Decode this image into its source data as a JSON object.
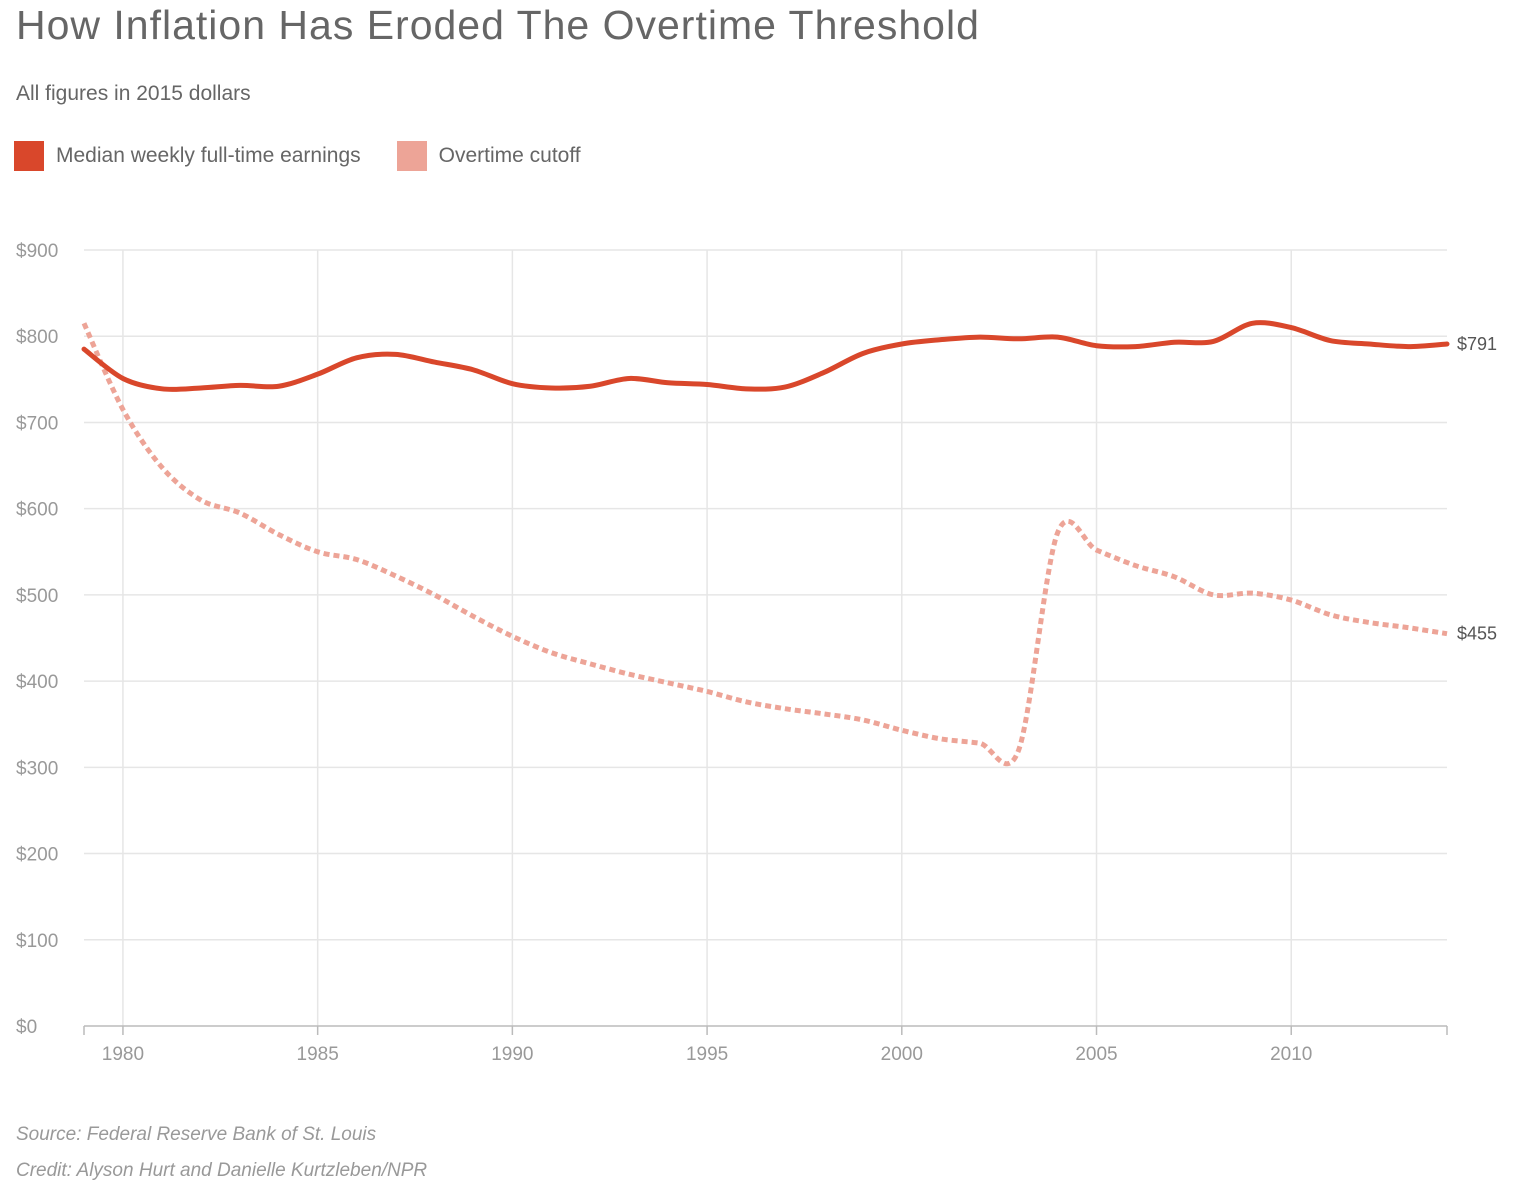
{
  "chart_data": {
    "type": "line",
    "title": "How Inflation Has Eroded The Overtime Threshold",
    "subtitle": "All figures in 2015 dollars",
    "xlim": [
      1979,
      2014
    ],
    "ylim": [
      0,
      900
    ],
    "x_ticks": [
      1980,
      1985,
      1990,
      1995,
      2000,
      2005,
      2010
    ],
    "x_tick_labels": [
      "1980",
      "1985",
      "1990",
      "1995",
      "2000",
      "2005",
      "2010"
    ],
    "y_ticks": [
      0,
      100,
      200,
      300,
      400,
      500,
      600,
      700,
      800,
      900
    ],
    "y_tick_labels": [
      "$0",
      "$100",
      "$200",
      "$300",
      "$400",
      "$500",
      "$600",
      "$700",
      "$800",
      "$900"
    ],
    "grid": true,
    "legend_position": "top-left",
    "series": [
      {
        "name": "Median weekly full-time earnings",
        "color": "#d9472b",
        "style": "solid",
        "x": [
          1979,
          1980,
          1981,
          1982,
          1983,
          1984,
          1985,
          1986,
          1987,
          1988,
          1989,
          1990,
          1991,
          1992,
          1993,
          1994,
          1995,
          1996,
          1997,
          1998,
          1999,
          2000,
          2001,
          2002,
          2003,
          2004,
          2005,
          2006,
          2007,
          2008,
          2009,
          2010,
          2011,
          2012,
          2013,
          2014
        ],
        "values": [
          785,
          751,
          739,
          740,
          743,
          742,
          756,
          775,
          779,
          770,
          761,
          745,
          740,
          742,
          751,
          746,
          744,
          739,
          741,
          758,
          780,
          791,
          796,
          799,
          797,
          799,
          789,
          788,
          793,
          794,
          815,
          810,
          795,
          791,
          788,
          791
        ],
        "end_label": "$791"
      },
      {
        "name": "Overtime cutoff",
        "color": "#eda497",
        "style": "dotted",
        "x": [
          1979,
          1980,
          1981,
          1982,
          1983,
          1984,
          1985,
          1986,
          1987,
          1988,
          1989,
          1990,
          1991,
          1992,
          1993,
          1994,
          1995,
          1996,
          1997,
          1998,
          1999,
          2000,
          2001,
          2002,
          2003,
          2004,
          2005,
          2006,
          2007,
          2008,
          2009,
          2010,
          2011,
          2012,
          2013,
          2014
        ],
        "values": [
          815,
          715,
          648,
          610,
          595,
          570,
          550,
          541,
          522,
          500,
          475,
          452,
          433,
          420,
          408,
          398,
          388,
          376,
          368,
          362,
          355,
          343,
          333,
          328,
          320,
          572,
          552,
          534,
          521,
          500,
          502,
          494,
          477,
          468,
          462,
          455
        ],
        "end_label": "$455"
      }
    ]
  },
  "source": "Source: Federal Reserve Bank of St. Louis",
  "credit": "Credit: Alyson Hurt and Danielle Kurtzleben/NPR"
}
